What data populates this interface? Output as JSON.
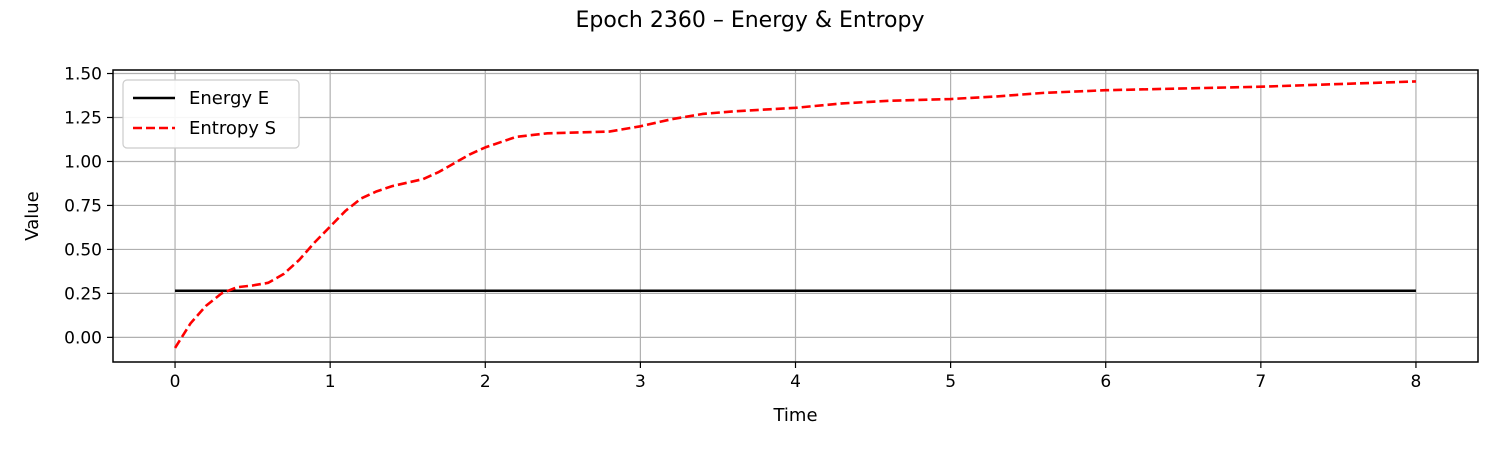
{
  "chart_data": {
    "type": "line",
    "title": "Epoch 2360 – Energy & Entropy",
    "xlabel": "Time",
    "ylabel": "Value",
    "xlim": [
      -0.4,
      8.4
    ],
    "ylim": [
      -0.14,
      1.52
    ],
    "xticks": [
      0,
      1,
      2,
      3,
      4,
      5,
      6,
      7,
      8
    ],
    "yticks": [
      0.0,
      0.25,
      0.5,
      0.75,
      1.0,
      1.25,
      1.5
    ],
    "ytick_labels": [
      "0.00",
      "0.25",
      "0.50",
      "0.75",
      "1.00",
      "1.25",
      "1.50"
    ],
    "grid": true,
    "legend_position": "top-left",
    "series": [
      {
        "name": "Energy E",
        "color": "#000000",
        "style": "solid",
        "x": [
          0,
          8
        ],
        "y": [
          0.265,
          0.265
        ]
      },
      {
        "name": "Entropy S",
        "color": "#ff0000",
        "style": "dashed",
        "x": [
          0,
          0.1,
          0.2,
          0.3,
          0.4,
          0.5,
          0.6,
          0.7,
          0.8,
          0.9,
          1.0,
          1.1,
          1.2,
          1.3,
          1.4,
          1.5,
          1.6,
          1.7,
          1.8,
          1.9,
          2.0,
          2.2,
          2.4,
          2.6,
          2.8,
          3.0,
          3.2,
          3.4,
          3.6,
          3.8,
          4.0,
          4.3,
          4.6,
          5.0,
          5.3,
          5.6,
          6.0,
          6.5,
          7.0,
          7.5,
          8.0
        ],
        "y": [
          -0.06,
          0.08,
          0.18,
          0.25,
          0.285,
          0.295,
          0.31,
          0.36,
          0.44,
          0.54,
          0.63,
          0.72,
          0.79,
          0.83,
          0.86,
          0.88,
          0.9,
          0.94,
          0.99,
          1.04,
          1.08,
          1.14,
          1.16,
          1.165,
          1.17,
          1.2,
          1.24,
          1.27,
          1.285,
          1.295,
          1.305,
          1.33,
          1.345,
          1.355,
          1.37,
          1.39,
          1.405,
          1.415,
          1.425,
          1.44,
          1.455
        ]
      }
    ]
  }
}
